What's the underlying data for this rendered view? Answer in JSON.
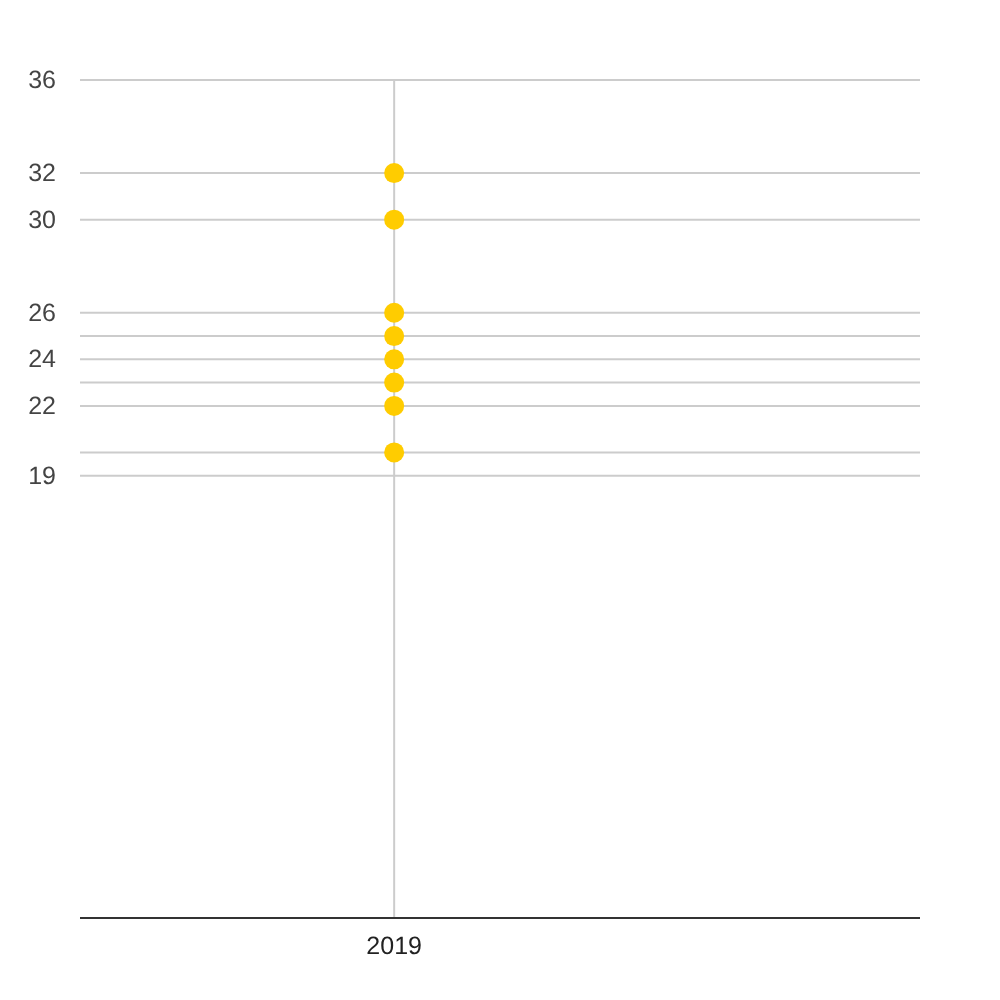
{
  "chart_data": {
    "type": "scatter",
    "categories": [
      "2019"
    ],
    "series": [
      {
        "color": "#ffcc00",
        "values": [
          32
        ]
      },
      {
        "color": "#ffcc00",
        "values": [
          30
        ]
      },
      {
        "color": "#ffcc00",
        "values": [
          26
        ]
      },
      {
        "color": "#ffcc00",
        "values": [
          25
        ]
      },
      {
        "color": "#ffcc00",
        "values": [
          24
        ]
      },
      {
        "color": "#ffcc00",
        "values": [
          23
        ]
      },
      {
        "color": "#ffcc00",
        "values": [
          22
        ]
      },
      {
        "color": "#ffcc00",
        "values": [
          20
        ]
      }
    ],
    "ylim": [
      0,
      36
    ],
    "yticks": [
      19,
      {
        "value": 20,
        "label": null
      },
      22,
      {
        "value": 23,
        "label": null
      },
      24,
      {
        "value": 25,
        "label": null
      },
      26,
      30,
      32,
      36
    ],
    "grid": true,
    "marker": "circle"
  }
}
